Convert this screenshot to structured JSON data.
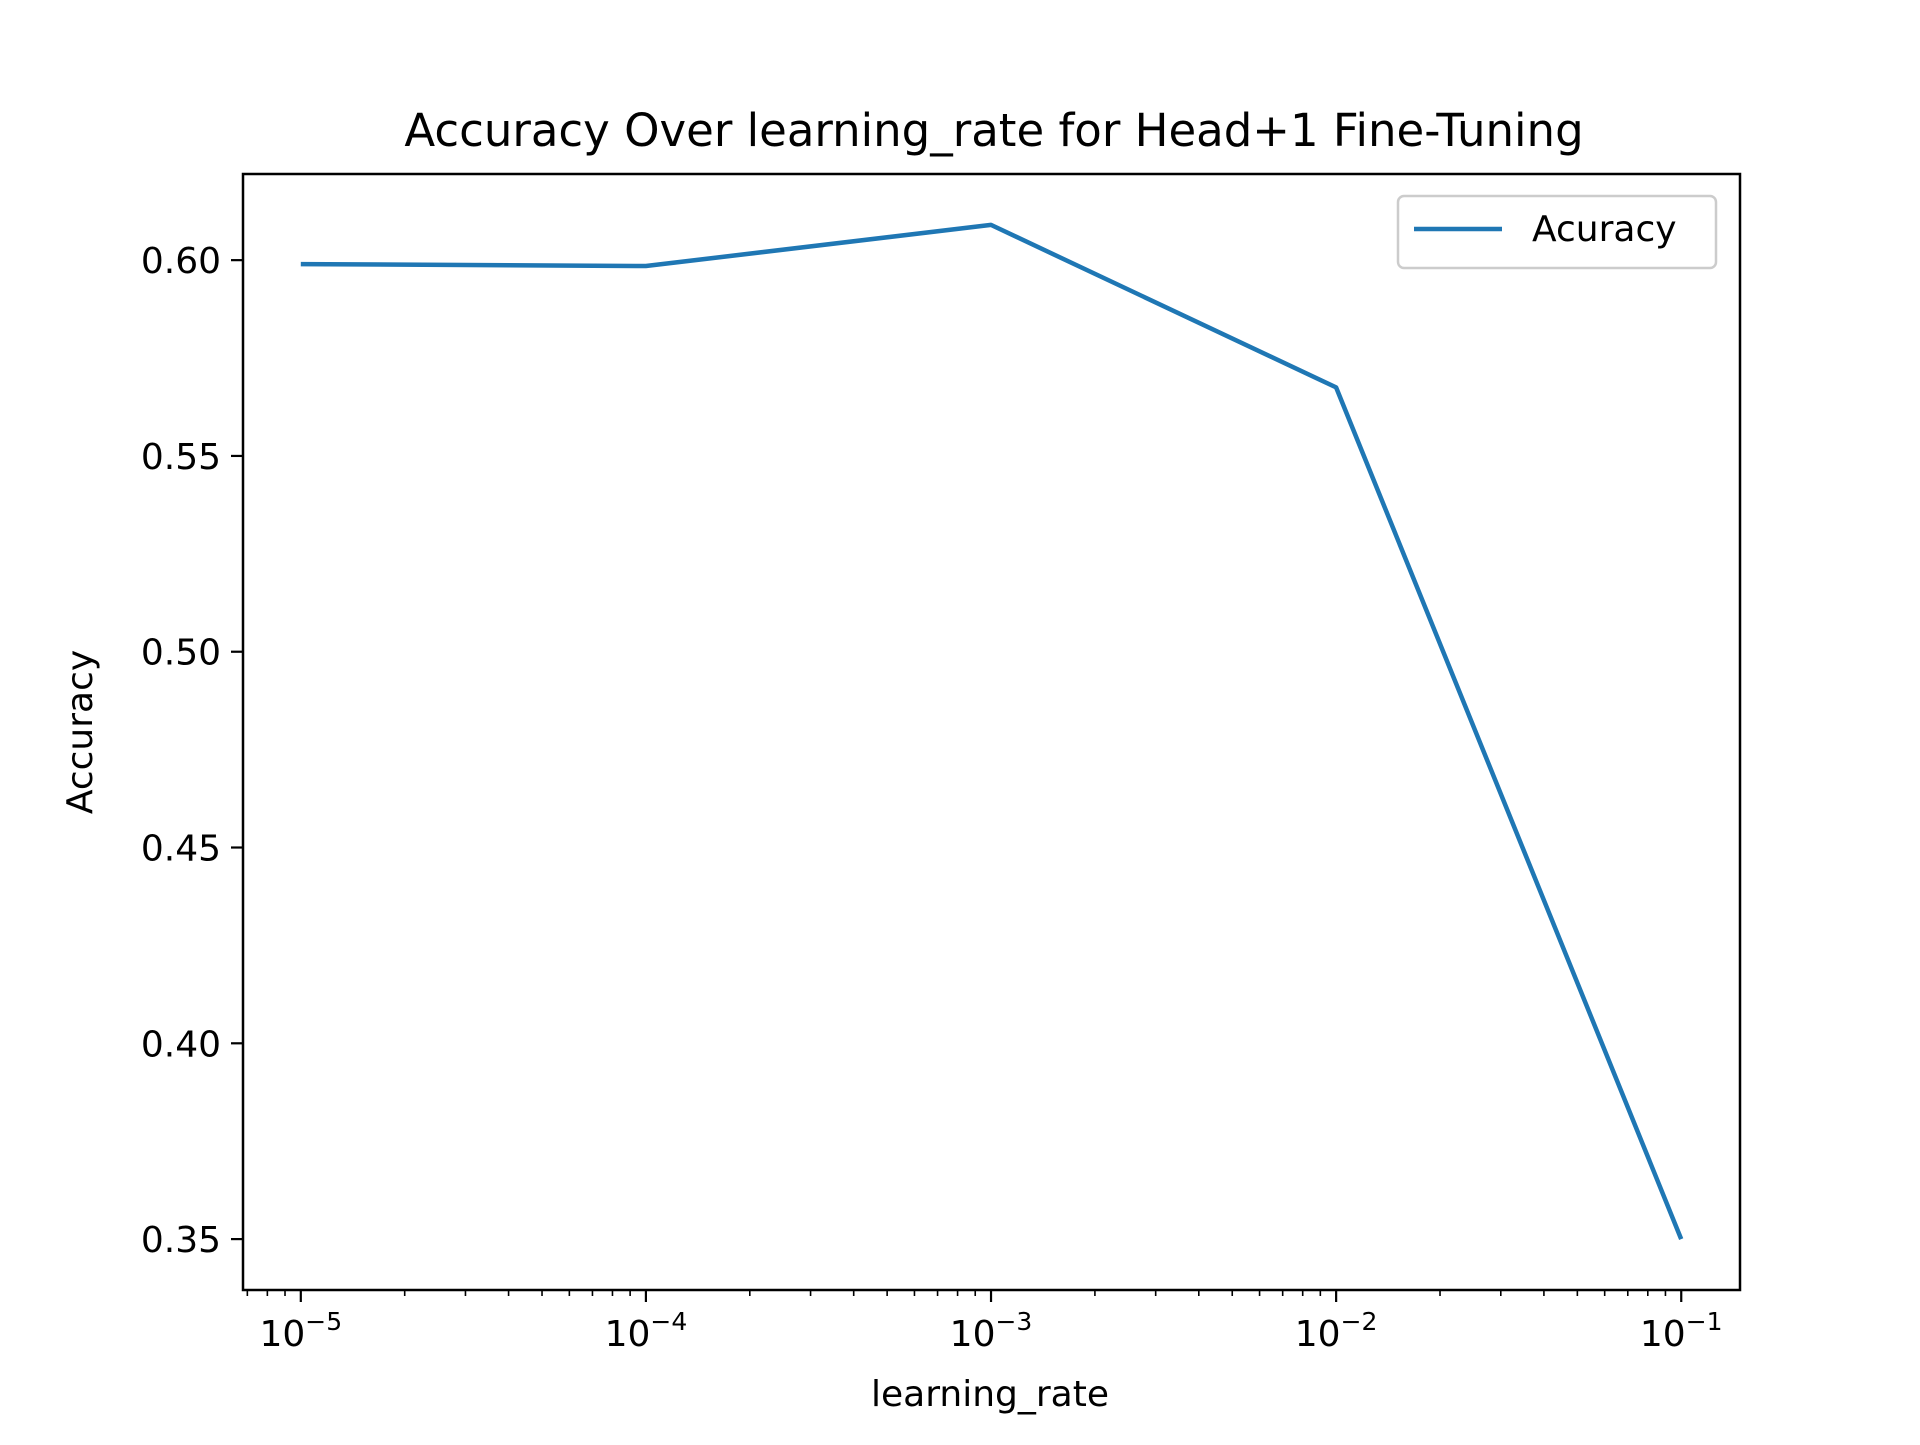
{
  "chart_data": {
    "type": "line",
    "title": "Accuracy Over learning_rate for Head+1 Fine-Tuning",
    "xlabel": "learning_rate",
    "ylabel": "Accuracy",
    "xscale": "log",
    "xlim": [
      6.8e-06,
      0.148
    ],
    "ylim": [
      0.337,
      0.622
    ],
    "x_ticks": [
      {
        "value": 1e-05,
        "base": "10",
        "exp": "−5"
      },
      {
        "value": 0.0001,
        "base": "10",
        "exp": "−4"
      },
      {
        "value": 0.001,
        "base": "10",
        "exp": "−3"
      },
      {
        "value": 0.01,
        "base": "10",
        "exp": "−2"
      },
      {
        "value": 0.1,
        "base": "10",
        "exp": "−1"
      }
    ],
    "y_ticks": [
      {
        "value": 0.35,
        "label": "0.35"
      },
      {
        "value": 0.4,
        "label": "0.40"
      },
      {
        "value": 0.45,
        "label": "0.45"
      },
      {
        "value": 0.5,
        "label": "0.50"
      },
      {
        "value": 0.55,
        "label": "0.55"
      },
      {
        "value": 0.6,
        "label": "0.60"
      }
    ],
    "grid": false,
    "legend_position": "top-right",
    "series": [
      {
        "name": "Acuracy",
        "color": "#1f77b4",
        "x": [
          1e-05,
          0.0001,
          0.001,
          0.01,
          0.1
        ],
        "y": [
          0.599,
          0.5985,
          0.609,
          0.5675,
          0.35
        ]
      }
    ]
  }
}
